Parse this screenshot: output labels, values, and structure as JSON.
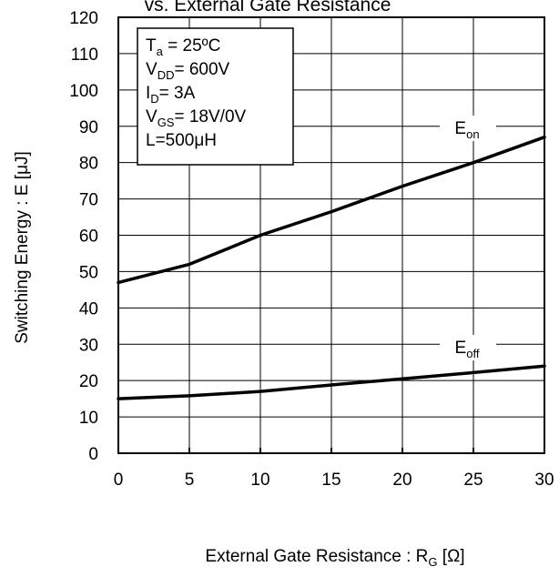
{
  "chart_data": {
    "type": "line",
    "title": "vs. External Gate Resistance",
    "xlabel": {
      "main": "External Gate Resistance : R",
      "sub": "G",
      "unit": " [Ω]"
    },
    "ylabel": "Switching Energy : E [μJ]",
    "xlim": [
      0,
      30
    ],
    "ylim": [
      0,
      120
    ],
    "x_ticks": [
      "0",
      "5",
      "10",
      "15",
      "20",
      "25",
      "30"
    ],
    "y_ticks": [
      "0",
      "10",
      "20",
      "30",
      "40",
      "50",
      "60",
      "70",
      "80",
      "90",
      "100",
      "110",
      "120"
    ],
    "grid": true,
    "conditions": [
      {
        "main": "T",
        "sub": "a",
        "rest": " = 25ºC"
      },
      {
        "main": "V",
        "sub": "DD",
        "rest": "= 600V"
      },
      {
        "main": "I",
        "sub": "D",
        "rest": "= 3A"
      },
      {
        "main": "V",
        "sub": "GS",
        "rest": "= 18V/0V"
      },
      {
        "main": "L=500μH",
        "sub": "",
        "rest": ""
      }
    ],
    "series": [
      {
        "name": "E_on",
        "label_main": "E",
        "label_sub": "on",
        "x": [
          0,
          2.5,
          5,
          7.5,
          10,
          15,
          20,
          25,
          30
        ],
        "values": [
          47,
          49.5,
          52,
          56,
          60,
          66.5,
          73.5,
          80,
          87
        ]
      },
      {
        "name": "E_off",
        "label_main": "E",
        "label_sub": "off",
        "x": [
          0,
          5,
          10,
          15,
          20,
          25,
          30
        ],
        "values": [
          15,
          15.8,
          17,
          18.8,
          20.5,
          22.2,
          24
        ]
      }
    ]
  }
}
